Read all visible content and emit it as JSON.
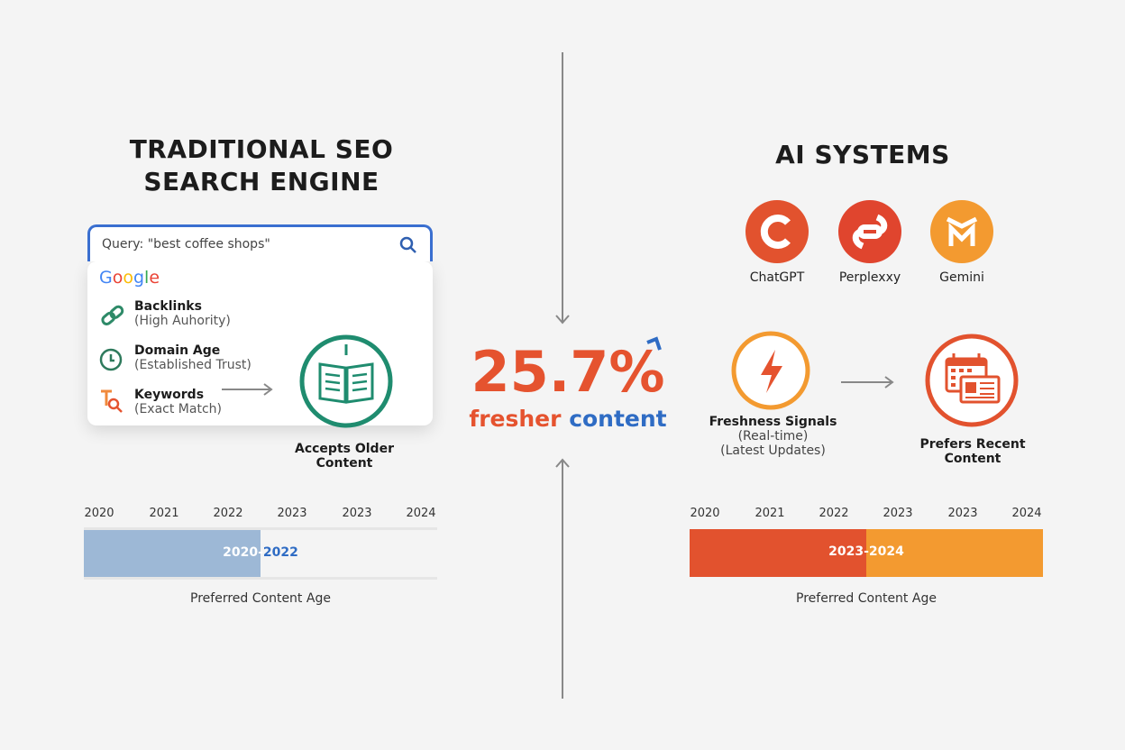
{
  "left": {
    "title_line1": "TRADITIONAL SEO",
    "title_line2": "SEARCH ENGINE",
    "search_query": "Query: \"best coffee shops\"",
    "brand": "Google",
    "factors": [
      {
        "title": "Backlinks",
        "sub": "(High Auhority)",
        "icon": "link-icon"
      },
      {
        "title": "Domain Age",
        "sub": "(Established Trust)",
        "icon": "clock-icon"
      },
      {
        "title": "Keywords",
        "sub": "(Exact Match)",
        "icon": "keyword-search-icon"
      }
    ],
    "result_line1": "Accepts Older",
    "result_line2": "Content",
    "timeline_ticks": [
      "2020",
      "2021",
      "2022",
      "2023",
      "2023",
      "2024"
    ],
    "bar_label_a": "2020-",
    "bar_label_b": "2022",
    "bar_fill_fraction": 0.5,
    "bar_color": "#9db8d6",
    "caption": "Preferred Content Age"
  },
  "center": {
    "stat": "25.7%",
    "word1": "fresher",
    "word2": "content",
    "stat_color": "#e5532f",
    "accent_color": "#2f6cc4"
  },
  "right": {
    "title": "AI SYSTEMS",
    "systems": [
      {
        "name": "ChatGPT",
        "icon": "chatgpt-logo-icon",
        "color": "#e2522e"
      },
      {
        "name": "Perplexxy",
        "icon": "perplexity-logo-icon",
        "color": "#e0452e"
      },
      {
        "name": "Gemini",
        "icon": "gemini-logo-icon",
        "color": "#f39a30"
      }
    ],
    "signal_title": "Freshness Signals",
    "signal_sub1": "(Real-time)",
    "signal_sub2": "(Latest Updates)",
    "result_line1": "Prefers Recent",
    "result_line2": "Content",
    "timeline_ticks": [
      "2020",
      "2021",
      "2022",
      "2023",
      "2023",
      "2024"
    ],
    "bar_label": "2023-2024",
    "bar_colors": [
      "#e2522e",
      "#f39a30"
    ],
    "caption": "Preferred Content Age"
  }
}
